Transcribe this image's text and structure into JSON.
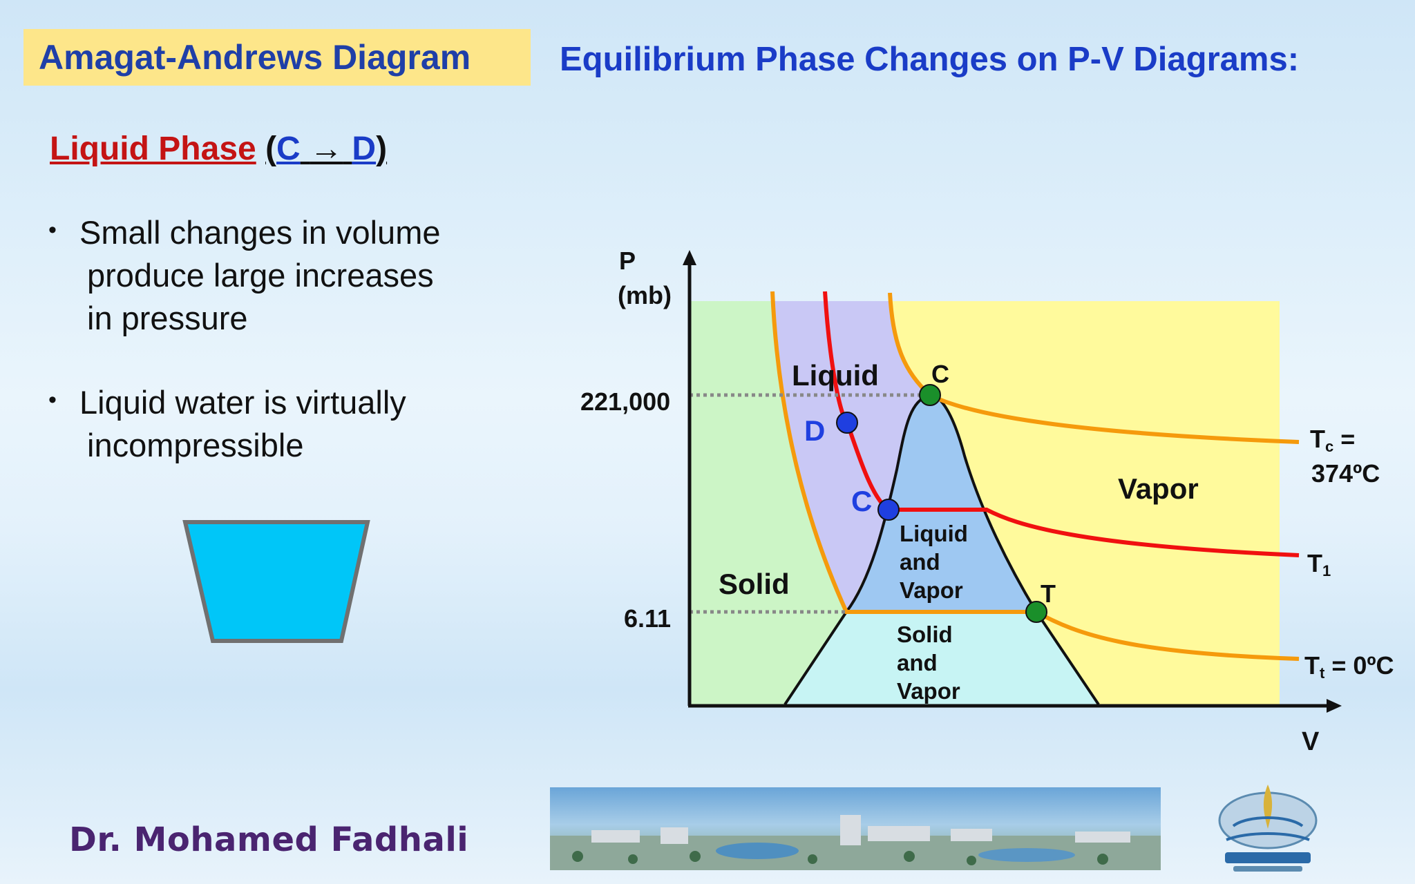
{
  "slide": {
    "title": "Amagat-Andrews Diagram",
    "header": "Equilibrium Phase Changes on P-V Diagrams:",
    "section_heading": {
      "label": "Liquid Phase",
      "open_paren": "(",
      "from": "C",
      "arrow": "→",
      "to": "D",
      "close_paren": ")"
    },
    "bullets": [
      [
        "Small changes in volume",
        "produce large increases",
        "in pressure"
      ],
      [
        "Liquid water is virtually",
        "incompressible"
      ]
    ],
    "bullet_symbol": "•",
    "author": "Dr. Mohamed Fadhali"
  },
  "diagram": {
    "axis_y_label_line1": "P",
    "axis_y_label_line2": "(mb)",
    "axis_x_label": "V",
    "tick_221000": "221,000",
    "tick_611": "6.11",
    "regions": {
      "solid": "Solid",
      "liquid": "Liquid",
      "vapor": "Vapor",
      "liquid_and_vapor": [
        "Liquid",
        "and",
        "Vapor"
      ],
      "solid_and_vapor": [
        "Solid",
        "and",
        "Vapor"
      ]
    },
    "points": {
      "critical": "C",
      "triple": "T",
      "state_c": "C",
      "state_d": "D"
    },
    "isotherms": {
      "tc_label_main": "T",
      "tc_label_sub": "c",
      "tc_label_tail": " =",
      "tc_value": "374ºC",
      "t1_label_main": "T",
      "t1_label_sub": "1",
      "tt_label_main": "T",
      "tt_label_sub": "t",
      "tt_label_tail": " = 0ºC"
    },
    "colors": {
      "solid_region": "#ccf5c6",
      "liquid_region": "#c9c8f5",
      "vapor_region": "#fffa9c",
      "liquid_vapor_dome": "#9ec8f2",
      "solid_vapor_region": "#c7f4f4",
      "orange_curve": "#f59a0c",
      "red_isotherm": "#f01010",
      "green_point": "#1a8f2a",
      "blue_point": "#1f3fe0"
    }
  }
}
